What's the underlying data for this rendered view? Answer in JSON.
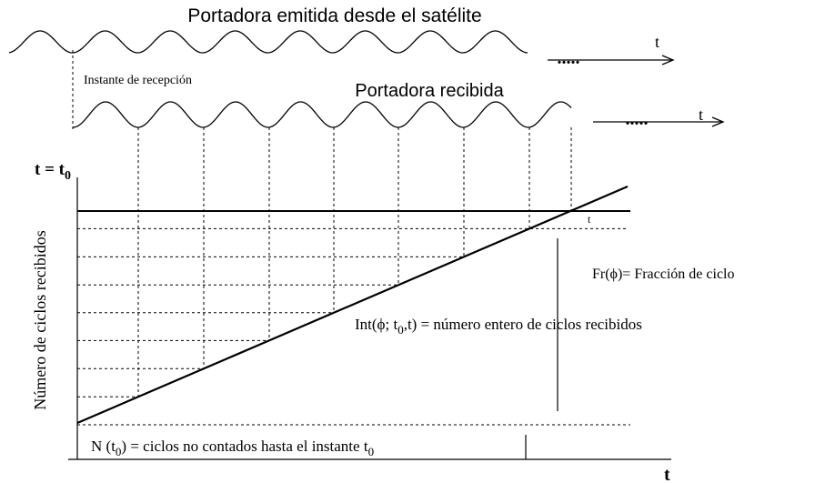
{
  "diagram": {
    "emitted_label": "Portadora emitida desde el satélite",
    "emitted_dots": ".....",
    "emitted_t": "t",
    "reception_label": "Instante de recepción",
    "received_label": "Portadora recibida",
    "received_dots": ".....",
    "received_t": "t",
    "t0_label": {
      "main": "t = t",
      "sub": "0"
    },
    "y_axis_label": "Número de ciclos recibidos",
    "small_t": "t",
    "fraction_label": "Fr(ϕ)= Fracción de ciclo",
    "integer_label": {
      "main": "Int(ϕ; t",
      "sub": "0",
      "rest": ",t)  = número entero de ciclos  recibidos"
    },
    "unknown_label": {
      "main": "N (t",
      "sub": "0",
      "rest": ")  = ciclos no contados  hasta el instante t",
      "sub2": "0"
    },
    "x_axis_t": "t"
  }
}
